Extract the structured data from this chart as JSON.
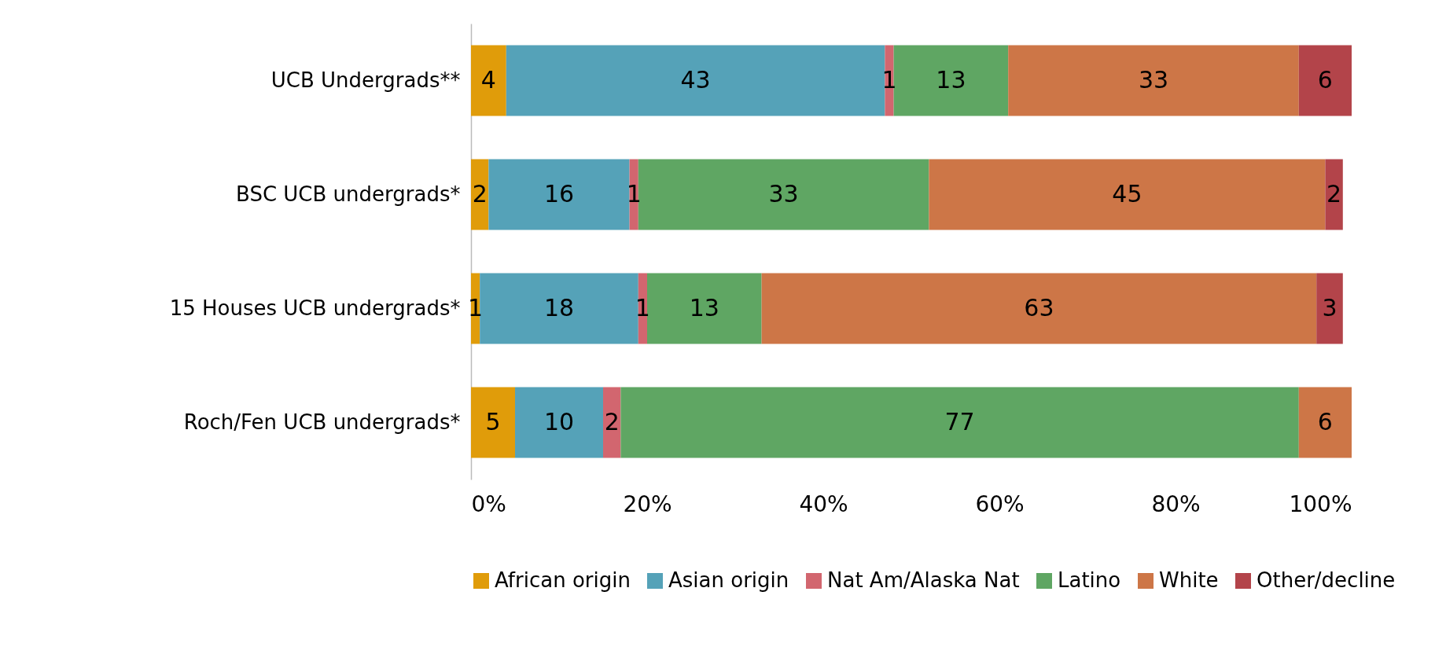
{
  "chart_data": {
    "type": "bar",
    "orientation": "horizontal",
    "stacked": true,
    "data_labels": true,
    "legend": "bottom",
    "grid": false,
    "categories": [
      "UCB Undergrads**",
      "BSC UCB undergrads*",
      "15 Houses UCB undergrads*",
      "Roch/Fen UCB undergrads*"
    ],
    "xlim": [
      0,
      100
    ],
    "xticks": [
      {
        "value": 0,
        "label": "0%"
      },
      {
        "value": 20,
        "label": "20%"
      },
      {
        "value": 40,
        "label": "40%"
      },
      {
        "value": 60,
        "label": "60%"
      },
      {
        "value": 80,
        "label": "80%"
      },
      {
        "value": 100,
        "label": "100%"
      }
    ],
    "series": [
      {
        "name": "African origin",
        "color": "#e09c0a",
        "values": [
          4,
          2,
          1,
          5
        ]
      },
      {
        "name": "Asian origin",
        "color": "#55a2b8",
        "values": [
          43,
          16,
          18,
          10
        ]
      },
      {
        "name": "Nat Am/Alaska Nat",
        "color": "#d2666f",
        "values": [
          1,
          1,
          1,
          2
        ]
      },
      {
        "name": "Latino",
        "color": "#5fa663",
        "values": [
          13,
          33,
          13,
          77
        ]
      },
      {
        "name": "White",
        "color": "#cd7647",
        "values": [
          33,
          45,
          63,
          6
        ]
      },
      {
        "name": "Other/decline",
        "color": "#b3444a",
        "values": [
          6,
          2,
          3,
          null
        ]
      }
    ]
  }
}
